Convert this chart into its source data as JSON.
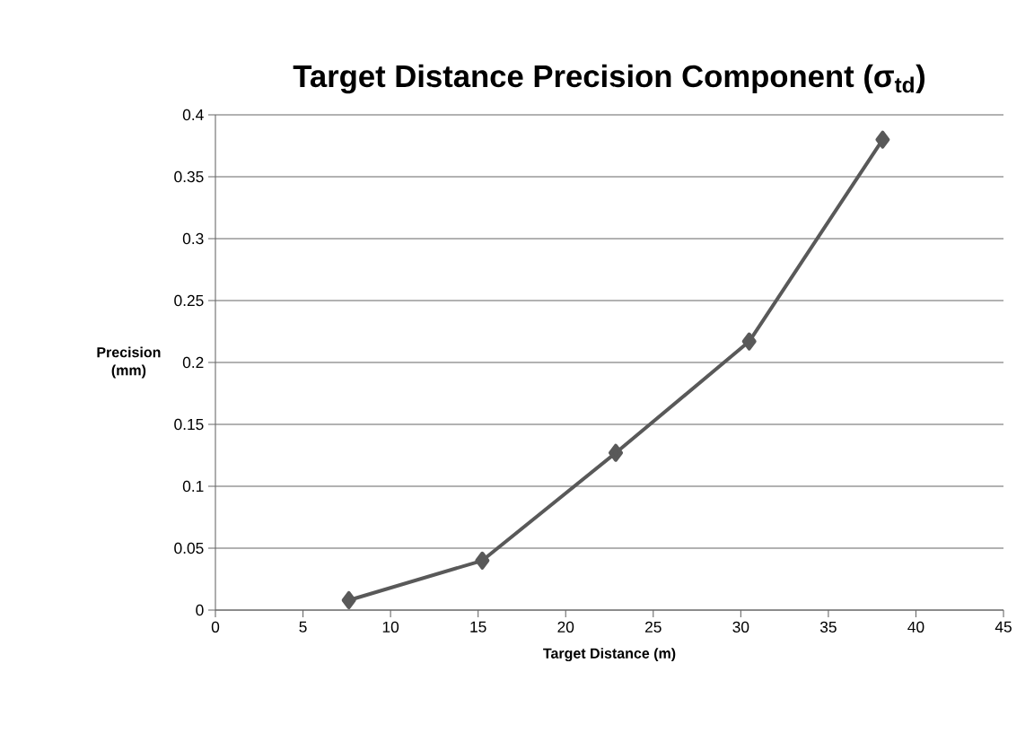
{
  "chart_data": {
    "type": "line",
    "title": "Target Distance Precision Component (σ$_{td}$)",
    "xlabel": "Target Distance (m)",
    "ylabel": "Precision (mm)",
    "x": [
      7.62,
      15.24,
      22.86,
      30.48,
      38.1
    ],
    "series": [
      {
        "color": "#595959",
        "values": [
          0.008,
          0.04,
          0.127,
          0.217,
          0.38
        ]
      }
    ],
    "xlim": [
      0,
      45
    ],
    "xticks": [
      0,
      5,
      10,
      15,
      20,
      25,
      30,
      35,
      40,
      45
    ],
    "ylim": [
      0,
      0.4
    ],
    "yticks": [
      0,
      0.05,
      0.1,
      0.15,
      0.2,
      0.25,
      0.3,
      0.35,
      0.4
    ],
    "grid": "y",
    "marker": "diamond",
    "line_style": "solid"
  }
}
